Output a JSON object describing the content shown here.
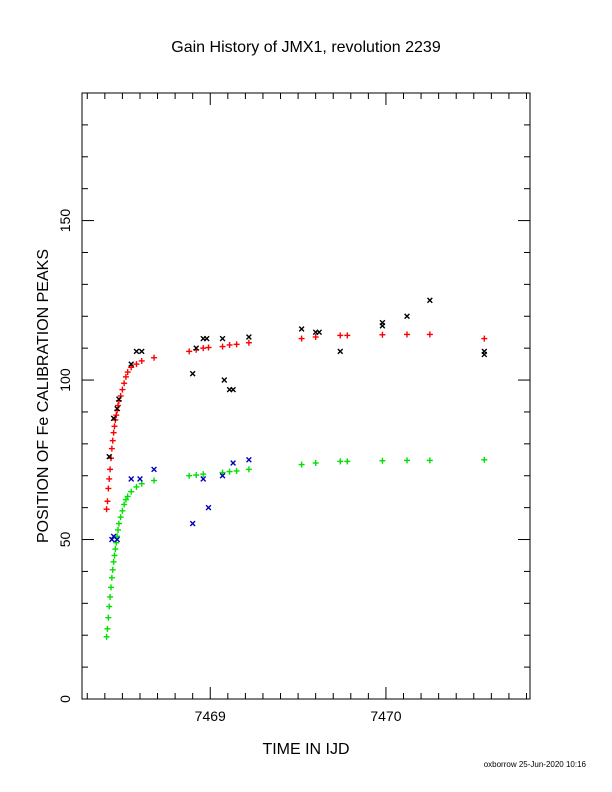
{
  "chart_data": {
    "type": "scatter",
    "title": "Gain History of JMX1, revolution 2239",
    "xlabel": "TIME IN IJD",
    "ylabel": "POSITION OF Fe CALIBRATION PEAKS",
    "xlim": [
      7468.27,
      7470.82
    ],
    "ylim": [
      0,
      190
    ],
    "xticks": [
      7469,
      7470
    ],
    "yticks": [
      0,
      50,
      100,
      150
    ],
    "footer": "oxborrow 25-Jun-2020 10:16",
    "colors": {
      "red": "#ff0000",
      "green": "#00e000",
      "black": "#000000",
      "blue": "#0000c0"
    },
    "series": [
      {
        "marker": "plus",
        "color": "#ff0000",
        "points": [
          [
            7468.41,
            59.5
          ],
          [
            7468.415,
            62
          ],
          [
            7468.42,
            66
          ],
          [
            7468.425,
            69
          ],
          [
            7468.43,
            72
          ],
          [
            7468.435,
            75.5
          ],
          [
            7468.44,
            78.5
          ],
          [
            7468.445,
            81
          ],
          [
            7468.45,
            83.5
          ],
          [
            7468.455,
            85.5
          ],
          [
            7468.46,
            87.5
          ],
          [
            7468.465,
            89
          ],
          [
            7468.47,
            90.5
          ],
          [
            7468.475,
            92
          ],
          [
            7468.48,
            93.5
          ],
          [
            7468.49,
            95
          ],
          [
            7468.5,
            97
          ],
          [
            7468.51,
            99
          ],
          [
            7468.52,
            101
          ],
          [
            7468.53,
            102.5
          ],
          [
            7468.55,
            104
          ],
          [
            7468.58,
            105
          ],
          [
            7468.61,
            106
          ],
          [
            7468.68,
            107
          ],
          [
            7468.88,
            109
          ],
          [
            7468.92,
            109.5
          ],
          [
            7468.96,
            110
          ],
          [
            7468.99,
            110.2
          ],
          [
            7469.07,
            110.5
          ],
          [
            7469.11,
            111
          ],
          [
            7469.15,
            111.2
          ],
          [
            7469.22,
            111.7
          ],
          [
            7469.52,
            113
          ],
          [
            7469.6,
            113.5
          ],
          [
            7469.74,
            114
          ],
          [
            7469.78,
            114
          ],
          [
            7469.98,
            114.2
          ],
          [
            7470.12,
            114.3
          ],
          [
            7470.25,
            114.3
          ],
          [
            7470.56,
            113
          ]
        ]
      },
      {
        "marker": "plus",
        "color": "#00e000",
        "points": [
          [
            7468.41,
            19.5
          ],
          [
            7468.415,
            22
          ],
          [
            7468.42,
            25.5
          ],
          [
            7468.425,
            29
          ],
          [
            7468.43,
            32
          ],
          [
            7468.435,
            35
          ],
          [
            7468.44,
            38
          ],
          [
            7468.445,
            40.5
          ],
          [
            7468.45,
            43
          ],
          [
            7468.455,
            45
          ],
          [
            7468.46,
            47
          ],
          [
            7468.465,
            49
          ],
          [
            7468.47,
            51
          ],
          [
            7468.475,
            53
          ],
          [
            7468.48,
            55
          ],
          [
            7468.49,
            57
          ],
          [
            7468.5,
            59
          ],
          [
            7468.51,
            61
          ],
          [
            7468.52,
            62.5
          ],
          [
            7468.53,
            63.5
          ],
          [
            7468.55,
            65
          ],
          [
            7468.58,
            66.5
          ],
          [
            7468.61,
            67.5
          ],
          [
            7468.68,
            68.5
          ],
          [
            7468.88,
            70
          ],
          [
            7468.92,
            70.2
          ],
          [
            7468.96,
            70.5
          ],
          [
            7469.07,
            71
          ],
          [
            7469.11,
            71.3
          ],
          [
            7469.15,
            71.5
          ],
          [
            7469.22,
            72
          ],
          [
            7469.52,
            73.5
          ],
          [
            7469.6,
            74
          ],
          [
            7469.74,
            74.5
          ],
          [
            7469.78,
            74.5
          ],
          [
            7469.98,
            74.7
          ],
          [
            7470.12,
            74.8
          ],
          [
            7470.25,
            74.8
          ],
          [
            7470.56,
            75
          ]
        ]
      },
      {
        "marker": "cross",
        "color": "#000000",
        "points": [
          [
            7468.425,
            76
          ],
          [
            7468.45,
            88
          ],
          [
            7468.47,
            91
          ],
          [
            7468.48,
            94
          ],
          [
            7468.55,
            105
          ],
          [
            7468.58,
            109
          ],
          [
            7468.61,
            109
          ],
          [
            7468.9,
            102
          ],
          [
            7468.92,
            110
          ],
          [
            7468.96,
            113
          ],
          [
            7468.98,
            113
          ],
          [
            7469.07,
            113
          ],
          [
            7469.08,
            100
          ],
          [
            7469.11,
            97
          ],
          [
            7469.13,
            97
          ],
          [
            7469.22,
            113.5
          ],
          [
            7469.52,
            116
          ],
          [
            7469.6,
            115
          ],
          [
            7469.62,
            115
          ],
          [
            7469.74,
            109
          ],
          [
            7469.98,
            117
          ],
          [
            7469.98,
            118
          ],
          [
            7470.12,
            120
          ],
          [
            7470.25,
            125
          ],
          [
            7470.56,
            108
          ],
          [
            7470.56,
            109
          ]
        ]
      },
      {
        "marker": "cross",
        "color": "#0000c0",
        "points": [
          [
            7468.44,
            50
          ],
          [
            7468.45,
            51
          ],
          [
            7468.47,
            50
          ],
          [
            7468.55,
            69
          ],
          [
            7468.6,
            69
          ],
          [
            7468.68,
            72
          ],
          [
            7468.9,
            55
          ],
          [
            7468.96,
            69
          ],
          [
            7468.99,
            60
          ],
          [
            7469.07,
            70
          ],
          [
            7469.13,
            74
          ],
          [
            7469.22,
            75
          ]
        ]
      }
    ]
  }
}
